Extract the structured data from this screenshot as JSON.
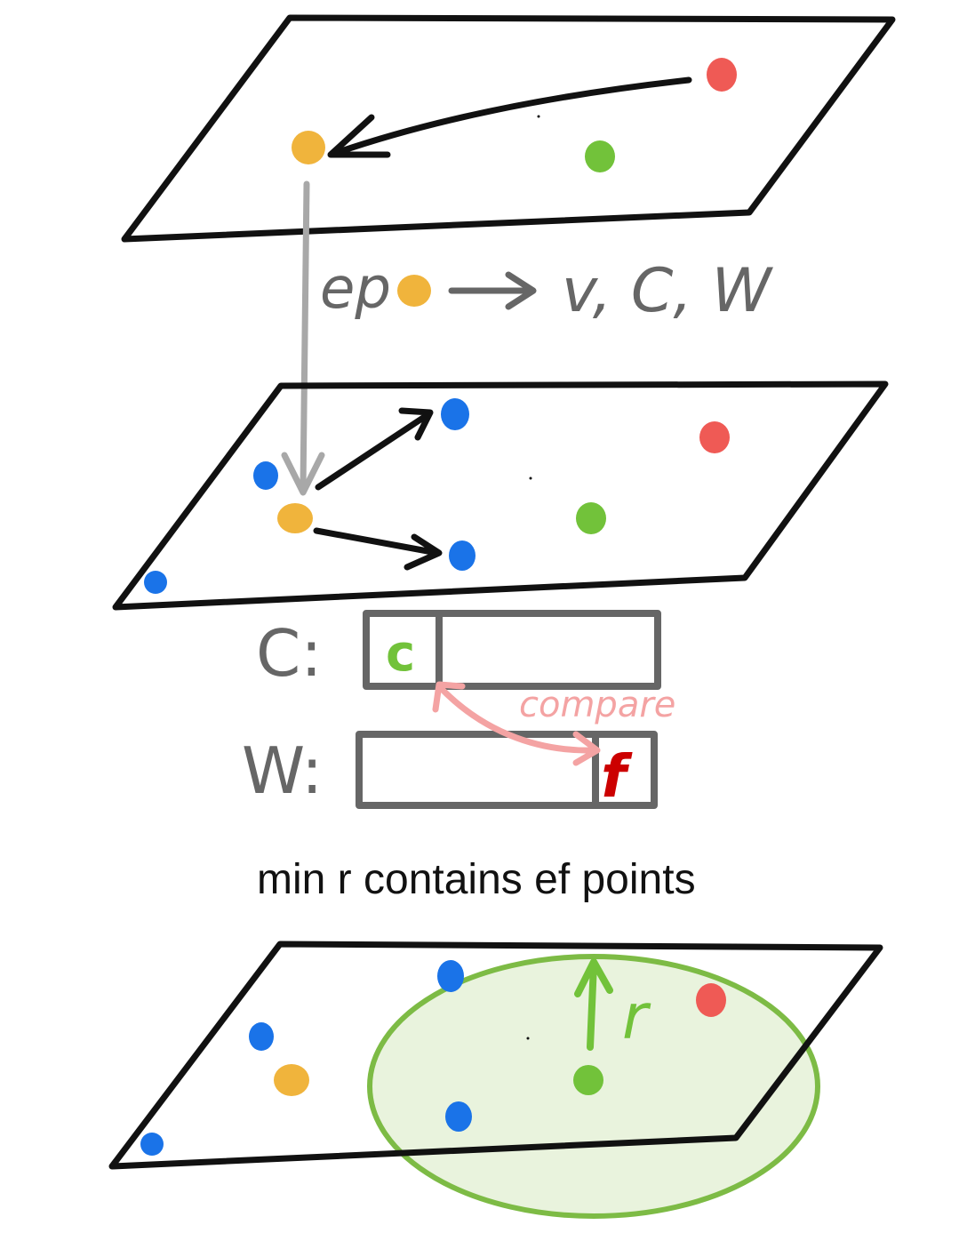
{
  "colors": {
    "ink": "#111111",
    "gray_ink": "#666666",
    "gray_arrow": "#a8a8a8",
    "orange": "#f0b43c",
    "green": "#72c23a",
    "red": "#ef5a55",
    "blue": "#1a73e8",
    "pink": "#f4a3a3",
    "dark_red": "#cc0000",
    "ellipse_fill": "#e9f3dd",
    "ellipse_stroke": "#7dbb45"
  },
  "labels": {
    "ep": "ep",
    "ep_targets": "v, C, W",
    "c_label": "C:",
    "w_label": "W:",
    "c_cell": "c",
    "w_cell": "f",
    "compare": "compare",
    "caption": "min r contains ef points",
    "radius": "r"
  }
}
